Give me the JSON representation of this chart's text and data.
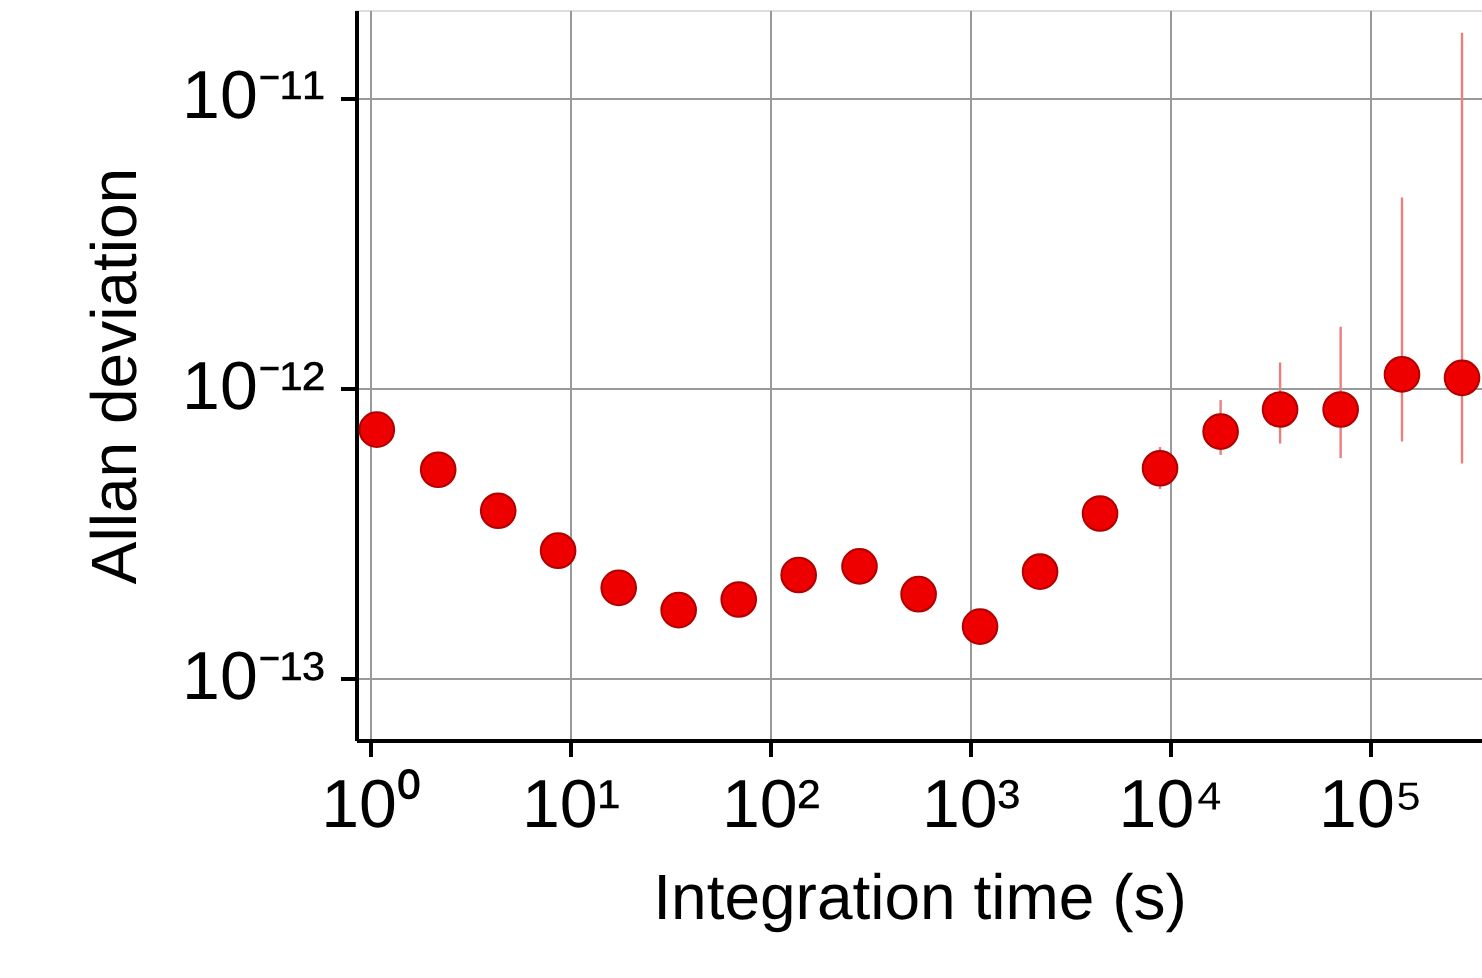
{
  "chart_data": {
    "type": "scatter",
    "xlabel": "Integration time (s)",
    "ylabel": "Allan deviation",
    "log": "xy",
    "grid": true,
    "marker": "circle",
    "x": [
      1.08,
      2.19,
      4.37,
      8.71,
      17.5,
      34.9,
      69.7,
      139,
      280,
      553,
      1122,
      2239,
      4467,
      8913,
      17900,
      35500,
      71300,
      144500,
      288400
    ],
    "series": [
      {
        "color": "#ee0000",
        "values": [
          7.16e-13,
          5.21e-13,
          3.76e-13,
          2.74e-13,
          2.04e-13,
          1.71e-13,
          1.86e-13,
          2.26e-13,
          2.42e-13,
          1.94e-13,
          1.5e-13,
          2.32e-13,
          3.68e-13,
          5.27e-13,
          7.05e-13,
          8.4e-13,
          8.4e-13,
          1.11e-12,
          1.08e-12
        ],
        "errors": [
          null,
          null,
          null,
          null,
          null,
          null,
          null,
          null,
          null,
          null,
          null,
          null,
          null,
          [
            4.47e-13,
            6.24e-13
          ],
          [
            5.86e-13,
            9.06e-13
          ],
          [
            6.41e-13,
            1.22e-12
          ],
          [
            5.71e-13,
            1.62e-12
          ],
          [
            6.52e-13,
            4.52e-12
          ],
          [
            5.47e-13,
            1.67e-11
          ]
        ]
      }
    ],
    "xlim": [
      0.85,
      363000
    ],
    "ylim": [
      6.1e-14,
      2e-11
    ],
    "xticks": [
      {
        "value": 1,
        "label": "10⁰"
      },
      {
        "value": 10,
        "label": "10¹"
      },
      {
        "value": 100,
        "label": "10²"
      },
      {
        "value": 1000,
        "label": "10³"
      },
      {
        "value": 10000,
        "label": "10⁴"
      },
      {
        "value": 100000,
        "label": "10⁵"
      }
    ],
    "yticks": [
      {
        "value": 1e-13,
        "label": "10⁻¹³"
      },
      {
        "value": 1e-12,
        "label": "10⁻¹²"
      },
      {
        "value": 1e-11,
        "label": "10⁻¹¹"
      }
    ]
  }
}
